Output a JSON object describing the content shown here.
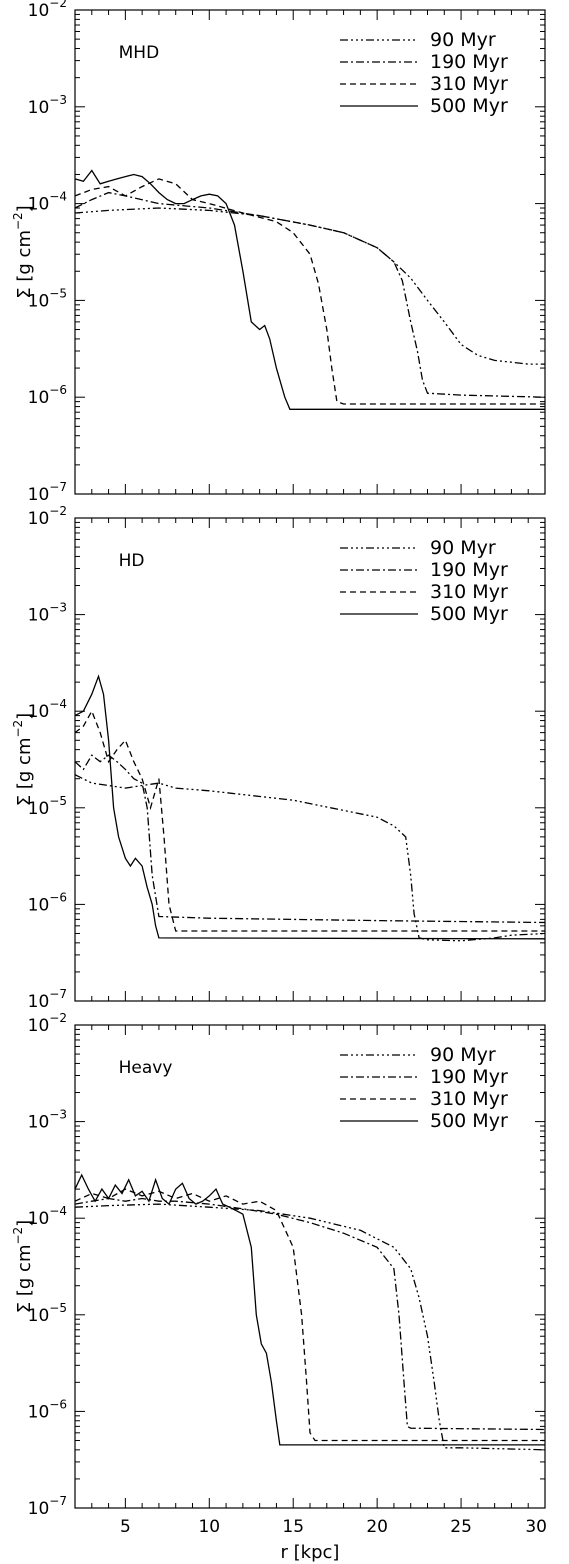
{
  "chart_data": {
    "type": "line",
    "x_axis": {
      "label": "r [kpc]",
      "range": [
        2,
        30
      ],
      "ticks": [
        5,
        10,
        15,
        20,
        25,
        30
      ],
      "tick_labels": [
        "5",
        "10",
        "15",
        "20",
        "25",
        "30"
      ]
    },
    "y_axis": {
      "label_base": "Σ [g cm",
      "label_exp": "−2",
      "label_close": "]",
      "scale": "log",
      "range": [
        1e-07,
        0.01
      ],
      "ticks": [
        {
          "value": 0.01,
          "base": "10",
          "exp": "−2"
        },
        {
          "value": 0.001,
          "base": "10",
          "exp": "−3"
        },
        {
          "value": 0.0001,
          "base": "10",
          "exp": "−4"
        },
        {
          "value": 1e-05,
          "base": "10",
          "exp": "−5"
        },
        {
          "value": 1e-06,
          "base": "10",
          "exp": "−6"
        },
        {
          "value": 1e-07,
          "base": "10",
          "exp": "−7"
        }
      ]
    },
    "legend_position": "top-right",
    "series_styles": {
      "90 Myr": "dash-dot-dot-dot",
      "190 Myr": "dash-dot",
      "310 Myr": "dashed",
      "500 Myr": "solid"
    },
    "panels": [
      {
        "label": "MHD",
        "legend": [
          "90 Myr",
          "190 Myr",
          "310 Myr",
          "500 Myr"
        ],
        "series": [
          {
            "name": "90 Myr",
            "x": [
              2,
              4,
              7,
              10,
              13,
              16,
              18,
              20,
              21,
              22,
              23,
              24,
              25,
              26,
              27,
              28,
              29,
              30
            ],
            "y": [
              8e-05,
              8.5e-05,
              9e-05,
              8.5e-05,
              7.5e-05,
              6e-05,
              5e-05,
              3.5e-05,
              2.5e-05,
              1.7e-05,
              1e-05,
              6e-06,
              3.5e-06,
              2.7e-06,
              2.4e-06,
              2.3e-06,
              2.2e-06,
              2.2e-06
            ]
          },
          {
            "name": "190 Myr",
            "x": [
              2,
              3,
              4,
              5,
              7,
              10,
              13,
              16,
              18,
              20,
              21,
              21.5,
              22,
              22.4,
              22.7,
              23,
              25,
              30
            ],
            "y": [
              9e-05,
              0.00011,
              0.00013,
              0.00012,
              0.0001,
              9e-05,
              7.5e-05,
              6e-05,
              5e-05,
              3.5e-05,
              2.5e-05,
              1.6e-05,
              6e-06,
              3e-06,
              1.5e-06,
              1.1e-06,
              1.05e-06,
              1e-06
            ]
          },
          {
            "name": "310 Myr",
            "x": [
              2,
              3,
              4,
              5,
              6,
              7,
              8,
              9,
              10,
              12,
              14,
              15,
              16,
              16.5,
              17,
              17.3,
              17.6,
              18,
              30
            ],
            "y": [
              0.00012,
              0.00014,
              0.00015,
              0.00012,
              0.00015,
              0.00018,
              0.00016,
              0.00011,
              0.0001,
              8e-05,
              6.5e-05,
              5e-05,
              3e-05,
              1.5e-05,
              5e-06,
              2e-06,
              9e-07,
              8.5e-07,
              8.5e-07
            ]
          },
          {
            "name": "500 Myr",
            "x": [
              2,
              2.5,
              3,
              3.5,
              4,
              4.5,
              5,
              5.5,
              6,
              6.5,
              7,
              7.5,
              8,
              8.5,
              9,
              9.5,
              10,
              10.5,
              11,
              11.5,
              12,
              12.5,
              13,
              13.3,
              13.6,
              14,
              14.5,
              14.8,
              15,
              30
            ],
            "y": [
              0.00018,
              0.00017,
              0.00022,
              0.00016,
              0.00017,
              0.00018,
              0.00019,
              0.0002,
              0.00019,
              0.00016,
              0.00013,
              0.00011,
              0.0001,
              0.0001,
              0.00011,
              0.00012,
              0.000125,
              0.00012,
              0.0001,
              6e-05,
              2e-05,
              6e-06,
              5e-06,
              5.5e-06,
              4e-06,
              2e-06,
              1e-06,
              7.5e-07,
              7.5e-07,
              7.5e-07
            ]
          }
        ]
      },
      {
        "label": "HD",
        "legend": [
          "90 Myr",
          "190 Myr",
          "310 Myr",
          "500 Myr"
        ],
        "series": [
          {
            "name": "90 Myr",
            "x": [
              2,
              3,
              4,
              5,
              6,
              7,
              8,
              10,
              15,
              20,
              21,
              21.7,
              22,
              22.2,
              22.5,
              23,
              25,
              27,
              28,
              30
            ],
            "y": [
              2.2e-05,
              1.8e-05,
              1.7e-05,
              1.6e-05,
              1.7e-05,
              1.8e-05,
              1.6e-05,
              1.5e-05,
              1.2e-05,
              8e-06,
              6.5e-06,
              5e-06,
              2e-06,
              8e-07,
              4.5e-07,
              4.3e-07,
              4.2e-07,
              4.5e-07,
              4.8e-07,
              5e-07
            ]
          },
          {
            "name": "190 Myr",
            "x": [
              2,
              2.5,
              3,
              3.5,
              4,
              4.5,
              5,
              5.5,
              6,
              6.3,
              6.6,
              7,
              10,
              20,
              30
            ],
            "y": [
              3e-05,
              2.5e-05,
              3.5e-05,
              3e-05,
              3.5e-05,
              3e-05,
              2.5e-05,
              2e-05,
              1.8e-05,
              1e-05,
              2e-06,
              7.5e-07,
              7.2e-07,
              6.8e-07,
              6.5e-07
            ]
          },
          {
            "name": "310 Myr",
            "x": [
              2,
              2.5,
              3,
              3.5,
              4,
              4.5,
              5,
              5.5,
              6,
              6.5,
              7,
              7.3,
              7.6,
              8,
              30
            ],
            "y": [
              6e-05,
              7e-05,
              0.0001,
              6e-05,
              3e-05,
              4e-05,
              5e-05,
              3e-05,
              2e-05,
              1e-05,
              2e-05,
              5e-06,
              1e-06,
              5.3e-07,
              5.3e-07
            ]
          },
          {
            "name": "500 Myr",
            "x": [
              2,
              2.5,
              3,
              3.4,
              3.7,
              4,
              4.3,
              4.6,
              5,
              5.3,
              5.6,
              6,
              6.3,
              6.6,
              6.8,
              7,
              30
            ],
            "y": [
              9e-05,
              0.0001,
              0.00015,
              0.00023,
              0.00015,
              5e-05,
              1e-05,
              5e-06,
              3e-06,
              2.5e-06,
              3e-06,
              2.5e-06,
              1.5e-06,
              1e-06,
              6e-07,
              4.5e-07,
              4.4e-07
            ]
          }
        ]
      },
      {
        "label": "Heavy",
        "legend": [
          "90 Myr",
          "190 Myr",
          "310 Myr",
          "500 Myr"
        ],
        "series": [
          {
            "name": "90 Myr",
            "x": [
              2,
              4,
              7,
              10,
              13,
              16,
              19,
              21,
              22,
              22.5,
              23,
              23.4,
              23.7,
              24,
              25,
              30
            ],
            "y": [
              0.00013,
              0.000135,
              0.00014,
              0.00013,
              0.00012,
              0.0001,
              7.5e-05,
              5e-05,
              3e-05,
              1.5e-05,
              6e-06,
              2e-06,
              8e-07,
              4.2e-07,
              4.2e-07,
              4e-07
            ]
          },
          {
            "name": "190 Myr",
            "x": [
              2,
              3,
              4,
              5,
              6,
              7,
              8,
              10,
              12,
              14,
              16,
              18,
              20,
              21,
              21.3,
              21.6,
              21.8,
              22,
              30
            ],
            "y": [
              0.00014,
              0.00015,
              0.00016,
              0.00015,
              0.00016,
              0.00015,
              0.00015,
              0.00014,
              0.000125,
              0.00011,
              9e-05,
              7e-05,
              5e-05,
              3e-05,
              1e-05,
              2e-06,
              7e-07,
              6.7e-07,
              6.5e-07
            ]
          },
          {
            "name": "310 Myr",
            "x": [
              2,
              3,
              4,
              5,
              6,
              7,
              8,
              9,
              10,
              11,
              12,
              13,
              14,
              15,
              15.5,
              15.8,
              16,
              16.3,
              30
            ],
            "y": [
              0.00015,
              0.00018,
              0.00016,
              0.0002,
              0.00017,
              0.00019,
              0.00016,
              0.00018,
              0.00015,
              0.00017,
              0.00014,
              0.00015,
              0.00012,
              5e-05,
              1e-05,
              2e-06,
              6e-07,
              5e-07,
              5e-07
            ]
          },
          {
            "name": "500 Myr",
            "x": [
              2,
              2.4,
              2.8,
              3.2,
              3.6,
              4,
              4.4,
              4.8,
              5.2,
              5.6,
              6,
              6.4,
              6.8,
              7.2,
              7.6,
              8,
              8.4,
              8.8,
              9.2,
              9.6,
              10,
              10.4,
              10.8,
              11.2,
              11.6,
              12,
              12.5,
              12.8,
              13.1,
              13.4,
              13.7,
              14,
              14.2,
              30
            ],
            "y": [
              0.0002,
              0.00028,
              0.0002,
              0.00015,
              0.0002,
              0.00016,
              0.00022,
              0.00018,
              0.00025,
              0.00017,
              0.00019,
              0.00015,
              0.00025,
              0.00016,
              0.00014,
              0.0002,
              0.00023,
              0.00016,
              0.00014,
              0.00015,
              0.00017,
              0.0002,
              0.00014,
              0.00013,
              0.00012,
              0.00011,
              5e-05,
              1e-05,
              5e-06,
              4e-06,
              2e-06,
              8e-07,
              4.5e-07,
              4.5e-07
            ]
          }
        ]
      }
    ]
  }
}
